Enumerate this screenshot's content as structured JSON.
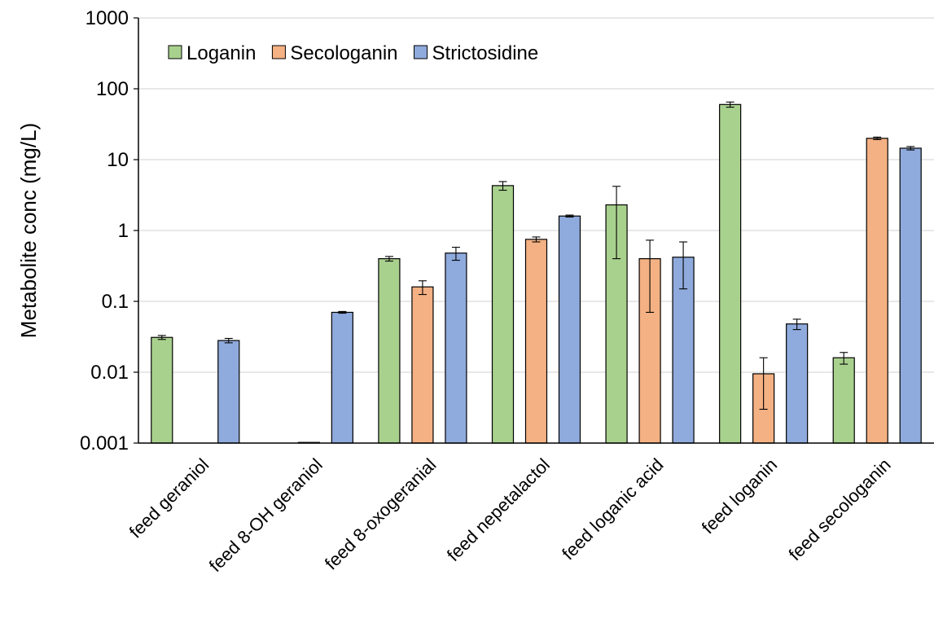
{
  "chart_data": {
    "type": "bar",
    "ylabel": "Metabolite conc (mg/L)",
    "yscale": "log",
    "ylim": [
      0.001,
      1000
    ],
    "yticks": [
      "0.001",
      "0.01",
      "0.1",
      "1",
      "10",
      "100",
      "1000"
    ],
    "grid": true,
    "legend_position": "top-left",
    "categories": [
      "feed geraniol",
      "feed 8-OH geraniol",
      "feed 8-oxogeranial",
      "feed nepetalactol",
      "feed loganic acid",
      "feed loganin",
      "feed secologanin"
    ],
    "series": [
      {
        "name": "Loganin",
        "color": "#A9D18E",
        "values": [
          0.031,
          null,
          0.4,
          4.3,
          2.3,
          60,
          0.016
        ],
        "errors": [
          0.002,
          null,
          0.03,
          0.6,
          1.9,
          5,
          0.003
        ]
      },
      {
        "name": "Secologanin",
        "color": "#F4B183",
        "values": [
          null,
          0.001,
          0.16,
          0.75,
          0.4,
          0.0095,
          20
        ],
        "errors": [
          null,
          0,
          0.035,
          0.06,
          0.33,
          0.0065,
          0.8
        ]
      },
      {
        "name": "Strictosidine",
        "color": "#8FAADC",
        "values": [
          0.028,
          0.07,
          0.48,
          1.6,
          0.42,
          0.048,
          14.5
        ],
        "errors": [
          0.002,
          0.002,
          0.1,
          0.05,
          0.27,
          0.008,
          0.8
        ]
      }
    ]
  }
}
